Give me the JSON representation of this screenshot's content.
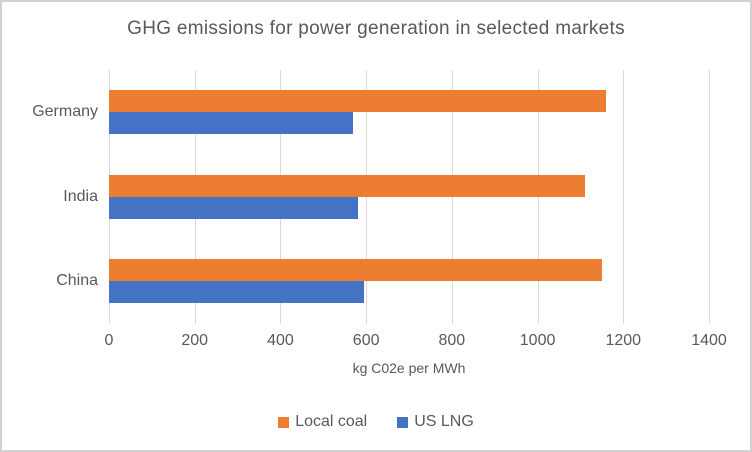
{
  "title": "GHG emissions for power generation in selected markets",
  "chart_data": {
    "type": "bar",
    "orientation": "horizontal",
    "title": "GHG emissions for power generation in selected markets",
    "categories": [
      "Germany",
      "India",
      "China"
    ],
    "series": [
      {
        "name": "Local coal",
        "color": "#ED7D31",
        "values": [
          1160,
          1110,
          1150
        ]
      },
      {
        "name": "US LNG",
        "color": "#4472C4",
        "values": [
          570,
          580,
          595
        ]
      }
    ],
    "xlabel": "kg C02e per MWh",
    "xlim": [
      0,
      1400
    ],
    "x_ticks": [
      0,
      200,
      400,
      600,
      800,
      1000,
      1200,
      1400
    ],
    "grid": "vertical-only",
    "legend_position": "bottom"
  },
  "colors": {
    "text": "#595959",
    "gridline": "#D9D9D9",
    "background": "#FFFFFF",
    "border": "#D2D2D2",
    "local_coal": "#ED7D31",
    "us_lng": "#4472C4"
  }
}
